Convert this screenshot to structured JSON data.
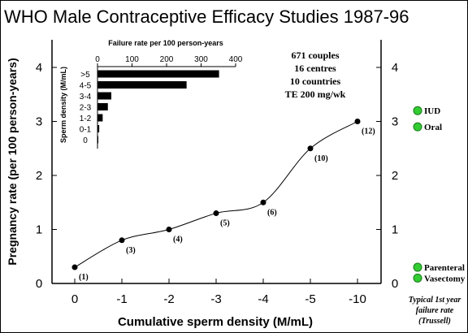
{
  "chart_data": [
    {
      "type": "line",
      "title": "WHO Male Contraceptive Efficacy Studies 1987-96",
      "xlabel": "Cumulative sperm density (M/mL)",
      "ylabel": "Pregnancy rate (per 100 person-years)",
      "categories": [
        "0",
        "-1",
        "-2",
        "-3",
        "-4",
        "-5",
        "-10"
      ],
      "ylim": [
        0,
        4
      ],
      "yticks": [
        "0",
        "1",
        "2",
        "3",
        "4"
      ],
      "right_yticks": [
        "0",
        "1",
        "2",
        "3",
        "4"
      ],
      "series": [
        {
          "values": [
            0.3,
            0.8,
            1.0,
            1.3,
            1.5,
            2.5,
            3.0
          ],
          "point_labels": [
            "(1)",
            "(3)",
            "(4)",
            "(5)",
            "(6)",
            "(10)",
            "(12)"
          ]
        }
      ],
      "grid": false,
      "annotation": [
        "671 couples",
        "16 centres",
        "10 countries",
        "TE 200 mg/wk"
      ],
      "reference_markers": [
        {
          "label": "IUD",
          "value": 3.2,
          "color": "#33cc33"
        },
        {
          "label": "Oral",
          "value": 2.9,
          "color": "#33cc33"
        },
        {
          "label": "Parenteral",
          "value": 0.3,
          "color": "#33cc33"
        },
        {
          "label": "Vasectomy",
          "value": 0.1,
          "color": "#33cc33"
        }
      ],
      "reference_caption": [
        "Typical 1st year",
        "failure rate",
        "(Trussell)"
      ]
    },
    {
      "type": "bar",
      "orientation": "horizontal",
      "title": "Failure rate per 100 person-years",
      "ylabel": "Sperm density (M/mL)",
      "categories": [
        ">5",
        "4-5",
        "3-4",
        "2-3",
        "1-2",
        "0-1",
        "0"
      ],
      "values": [
        352,
        258,
        40,
        30,
        15,
        5,
        2
      ],
      "xlim": [
        0,
        400
      ],
      "xticks": [
        "0",
        "100",
        "200",
        "300",
        "400"
      ],
      "grid": false
    }
  ]
}
